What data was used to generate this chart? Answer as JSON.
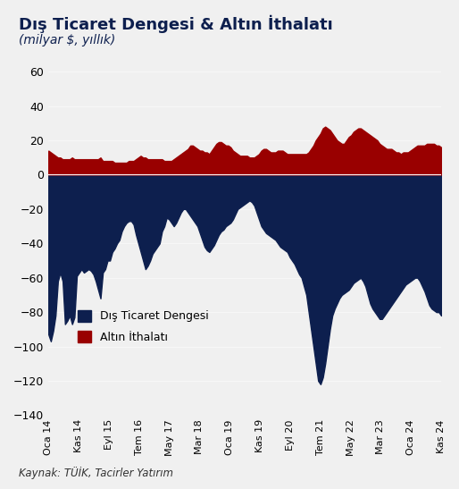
{
  "title": "Dış Ticaret Dengesi & Altın İthalatı",
  "subtitle": "(milyar $, yıllık)",
  "source": "Kaynak: TÜİK, Tacirler Yatırım",
  "background_color": "#f0f0f0",
  "navy_color": "#0d1f4e",
  "red_color": "#990000",
  "ylim": [
    -140,
    60
  ],
  "yticks": [
    -140,
    -120,
    -100,
    -80,
    -60,
    -40,
    -20,
    0,
    20,
    40,
    60
  ],
  "xtick_labels": [
    "Oca 14",
    "Kas 14",
    "Eyl 15",
    "Tem 16",
    "May 17",
    "Mar 18",
    "Oca 19",
    "Kas 19",
    "Eyl 20",
    "Tem 21",
    "May 22",
    "Mar 23",
    "Oca 24",
    "Kas 24"
  ],
  "trade_balance": [
    -93,
    -97,
    -91,
    -82,
    -62,
    -57,
    -62,
    -87,
    -85,
    -82,
    -87,
    -83,
    -59,
    -57,
    -55,
    -57,
    -56,
    -55,
    -56,
    -58,
    -62,
    -67,
    -72,
    -57,
    -55,
    -50,
    -50,
    -45,
    -43,
    -40,
    -38,
    -33,
    -30,
    -28,
    -27,
    -27,
    -29,
    -35,
    -40,
    -45,
    -50,
    -55,
    -53,
    -50,
    -46,
    -44,
    -42,
    -40,
    -33,
    -30,
    -25,
    -26,
    -28,
    -30,
    -28,
    -25,
    -22,
    -20,
    -20,
    -22,
    -24,
    -26,
    -28,
    -30,
    -34,
    -38,
    -42,
    -44,
    -45,
    -43,
    -41,
    -38,
    -35,
    -33,
    -32,
    -30,
    -29,
    -28,
    -26,
    -23,
    -20,
    -19,
    -18,
    -17,
    -16,
    -15,
    -16,
    -18,
    -22,
    -26,
    -30,
    -32,
    -34,
    -35,
    -36,
    -37,
    -38,
    -40,
    -42,
    -43,
    -44,
    -45,
    -48,
    -50,
    -52,
    -55,
    -58,
    -60,
    -65,
    -70,
    -80,
    -90,
    -100,
    -110,
    -120,
    -122,
    -118,
    -110,
    -100,
    -90,
    -82,
    -78,
    -75,
    -72,
    -70,
    -69,
    -68,
    -67,
    -65,
    -63,
    -62,
    -61,
    -60,
    -62,
    -65,
    -70,
    -75,
    -78,
    -80,
    -82,
    -84,
    -84,
    -82,
    -80,
    -78,
    -76,
    -74,
    -72,
    -70,
    -68,
    -66,
    -64,
    -63,
    -62,
    -61,
    -60,
    -60,
    -62,
    -65,
    -68,
    -72,
    -76,
    -78,
    -79,
    -80,
    -80,
    -82
  ],
  "gold_imports": [
    14,
    13,
    12,
    11,
    10,
    10,
    9,
    9,
    9,
    9,
    10,
    9,
    9,
    9,
    9,
    9,
    9,
    9,
    9,
    9,
    9,
    9,
    10,
    8,
    8,
    8,
    8,
    8,
    7,
    7,
    7,
    7,
    7,
    7,
    8,
    8,
    8,
    9,
    10,
    11,
    10,
    10,
    9,
    9,
    9,
    9,
    9,
    9,
    9,
    8,
    8,
    8,
    8,
    9,
    10,
    11,
    12,
    13,
    14,
    15,
    17,
    17,
    16,
    15,
    14,
    14,
    13,
    13,
    12,
    14,
    16,
    18,
    19,
    19,
    18,
    17,
    17,
    16,
    14,
    13,
    12,
    11,
    11,
    11,
    11,
    10,
    10,
    10,
    11,
    12,
    14,
    15,
    15,
    14,
    13,
    13,
    13,
    14,
    14,
    14,
    13,
    12,
    12,
    12,
    12,
    12,
    12,
    12,
    12,
    12,
    13,
    15,
    17,
    20,
    22,
    24,
    27,
    28,
    27,
    26,
    24,
    22,
    20,
    19,
    18,
    18,
    20,
    22,
    23,
    25,
    26,
    27,
    27,
    26,
    25,
    24,
    23,
    22,
    21,
    20,
    18,
    17,
    16,
    15,
    15,
    15,
    14,
    13,
    13,
    12,
    13,
    13,
    13,
    14,
    15,
    16,
    17,
    17,
    17,
    17,
    18,
    18,
    18,
    18,
    17,
    17,
    16
  ]
}
